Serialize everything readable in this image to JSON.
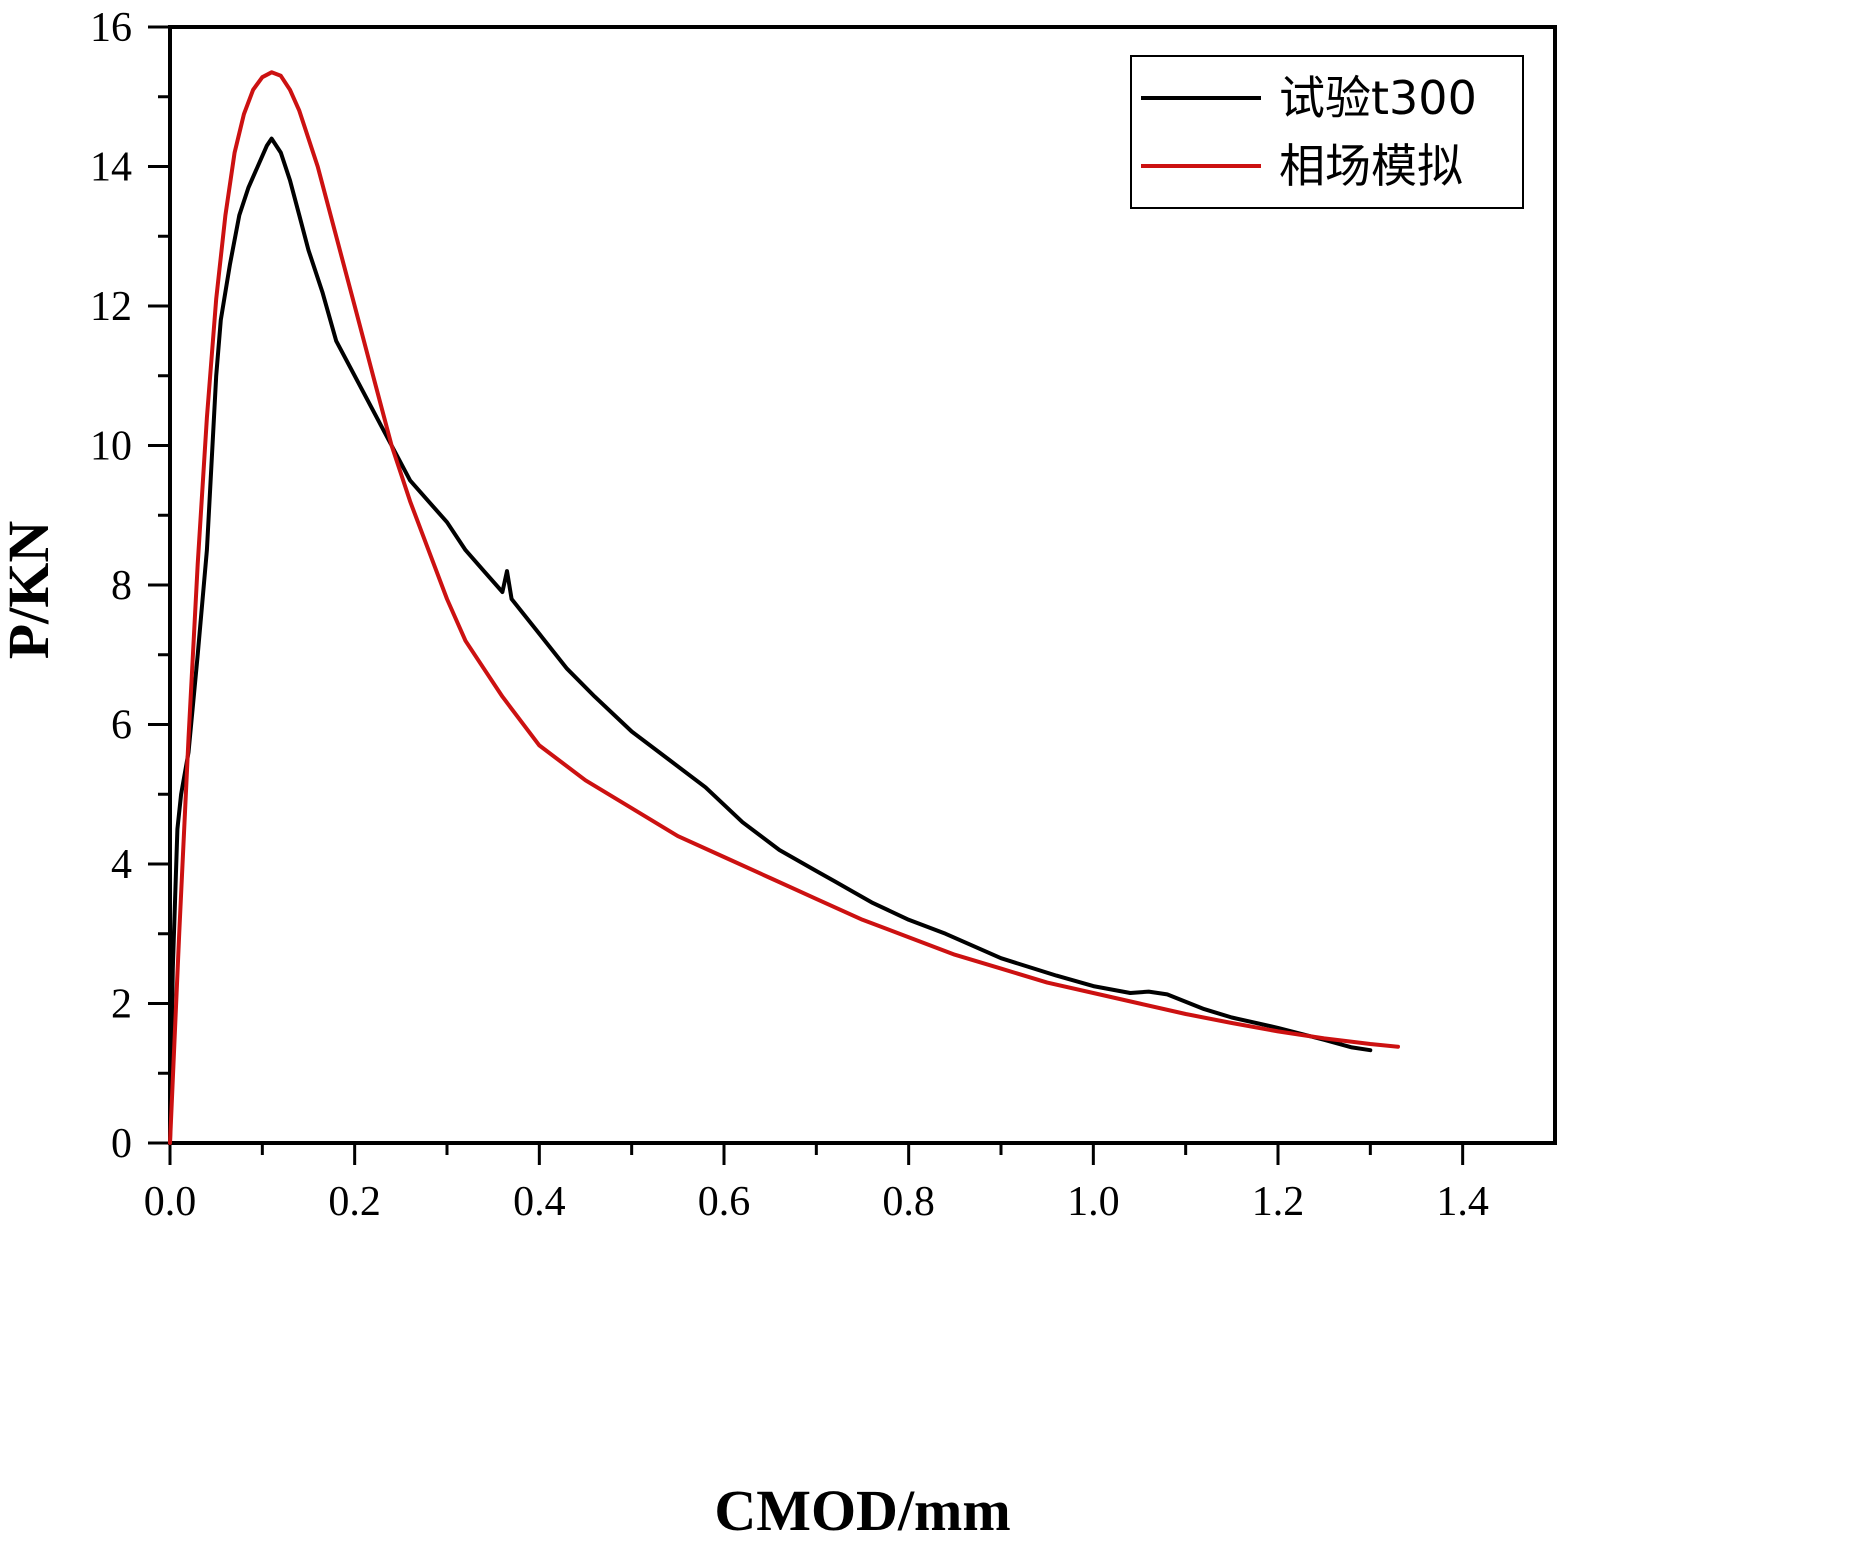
{
  "chart_data": {
    "type": "line",
    "title": "",
    "xlabel": "CMOD/mm",
    "ylabel": "P/KN",
    "xlim": [
      0,
      1.5
    ],
    "ylim": [
      0,
      16
    ],
    "xticks": [
      0.0,
      0.2,
      0.4,
      0.6,
      0.8,
      1.0,
      1.2,
      1.4
    ],
    "xtick_labels": [
      "0.0",
      "0.2",
      "0.4",
      "0.6",
      "0.8",
      "1.0",
      "1.2",
      "1.4"
    ],
    "yticks": [
      0,
      2,
      4,
      6,
      8,
      10,
      12,
      14,
      16
    ],
    "ytick_labels": [
      "0",
      "2",
      "4",
      "6",
      "8",
      "10",
      "12",
      "14",
      "16"
    ],
    "grid": false,
    "legend_position": "top-right",
    "series": [
      {
        "name": "试验t300",
        "color": "#000000",
        "x": [
          0.0,
          0.003,
          0.008,
          0.012,
          0.02,
          0.03,
          0.04,
          0.05,
          0.055,
          0.065,
          0.075,
          0.085,
          0.095,
          0.105,
          0.11,
          0.12,
          0.13,
          0.14,
          0.15,
          0.165,
          0.18,
          0.2,
          0.22,
          0.24,
          0.26,
          0.28,
          0.3,
          0.32,
          0.34,
          0.36,
          0.365,
          0.37,
          0.4,
          0.43,
          0.46,
          0.5,
          0.54,
          0.58,
          0.62,
          0.66,
          0.7,
          0.72,
          0.76,
          0.8,
          0.84,
          0.9,
          0.96,
          1.0,
          1.04,
          1.06,
          1.08,
          1.12,
          1.15,
          1.2,
          1.25,
          1.28,
          1.3
        ],
        "y": [
          0.0,
          2.5,
          4.5,
          5.0,
          5.6,
          7.0,
          8.5,
          11.0,
          11.8,
          12.6,
          13.3,
          13.7,
          14.0,
          14.3,
          14.4,
          14.2,
          13.8,
          13.3,
          12.8,
          12.2,
          11.5,
          11.0,
          10.5,
          10.0,
          9.5,
          9.2,
          8.9,
          8.5,
          8.2,
          7.9,
          8.2,
          7.8,
          7.3,
          6.8,
          6.4,
          5.9,
          5.5,
          5.1,
          4.6,
          4.2,
          3.9,
          3.75,
          3.45,
          3.2,
          3.0,
          2.65,
          2.4,
          2.25,
          2.15,
          2.17,
          2.13,
          1.92,
          1.8,
          1.65,
          1.48,
          1.37,
          1.33
        ]
      },
      {
        "name": "相场模拟",
        "color": "#cc1111",
        "x": [
          0.0,
          0.01,
          0.02,
          0.03,
          0.04,
          0.05,
          0.06,
          0.07,
          0.08,
          0.09,
          0.1,
          0.11,
          0.12,
          0.13,
          0.14,
          0.15,
          0.16,
          0.18,
          0.2,
          0.22,
          0.24,
          0.26,
          0.28,
          0.3,
          0.32,
          0.34,
          0.36,
          0.4,
          0.45,
          0.5,
          0.55,
          0.6,
          0.65,
          0.7,
          0.75,
          0.8,
          0.85,
          0.9,
          0.95,
          1.0,
          1.05,
          1.1,
          1.15,
          1.2,
          1.25,
          1.3,
          1.33
        ],
        "y": [
          0.0,
          3.0,
          5.8,
          8.3,
          10.4,
          12.1,
          13.3,
          14.2,
          14.75,
          15.1,
          15.28,
          15.35,
          15.3,
          15.1,
          14.8,
          14.4,
          14.0,
          13.0,
          12.0,
          11.0,
          10.0,
          9.2,
          8.5,
          7.8,
          7.2,
          6.8,
          6.4,
          5.7,
          5.2,
          4.8,
          4.4,
          4.1,
          3.8,
          3.5,
          3.2,
          2.95,
          2.7,
          2.5,
          2.3,
          2.15,
          2.0,
          1.85,
          1.72,
          1.6,
          1.5,
          1.42,
          1.38
        ]
      }
    ]
  }
}
